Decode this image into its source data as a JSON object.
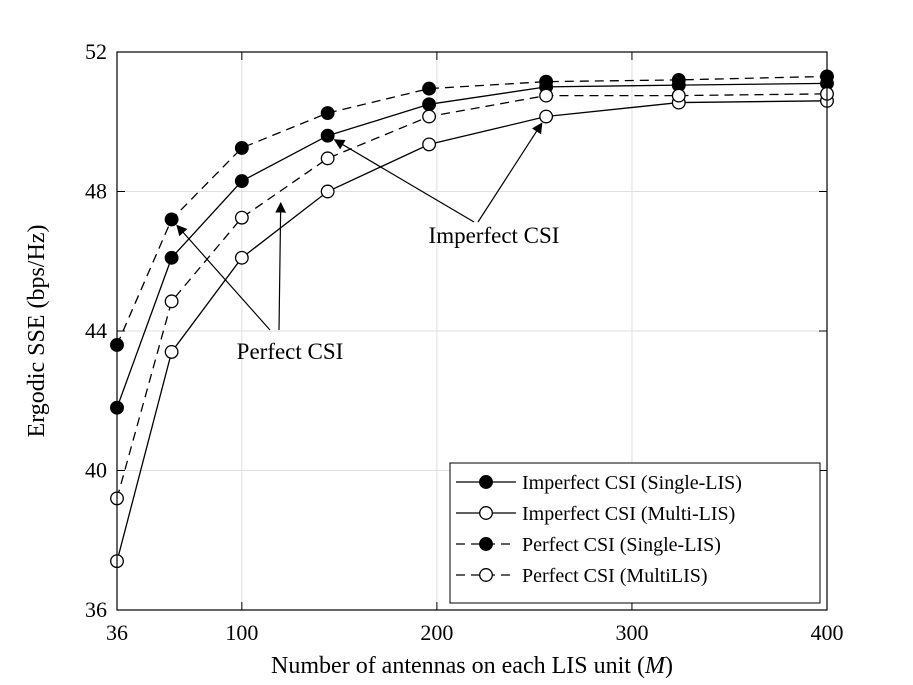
{
  "chart_data": {
    "type": "line",
    "title": "",
    "xlabel": "Number of antennas on each LIS unit",
    "xlabel_var": "M",
    "ylabel": "Ergodic SSE (bps/Hz)",
    "xlim": [
      36,
      400
    ],
    "ylim": [
      36,
      52
    ],
    "xticks": [
      36,
      100,
      200,
      300,
      400
    ],
    "yticks": [
      36,
      40,
      44,
      48,
      52
    ],
    "grid": true,
    "legend_position": "bottom-right",
    "x": [
      36,
      64,
      100,
      144,
      196,
      256,
      324,
      400
    ],
    "series": [
      {
        "name": "Imperfect CSI (Single-LIS)",
        "line": "solid",
        "marker": "filled-circle",
        "values": [
          41.8,
          46.1,
          48.3,
          49.6,
          50.5,
          51.0,
          51.05,
          51.1
        ]
      },
      {
        "name": "Imperfect CSI (Multi-LIS)",
        "line": "solid",
        "marker": "open-circle",
        "values": [
          37.4,
          43.4,
          46.1,
          48.0,
          49.35,
          50.15,
          50.55,
          50.6
        ]
      },
      {
        "name": "Perfect CSI (Single-LIS)",
        "line": "dashed",
        "marker": "filled-circle",
        "values": [
          43.6,
          47.2,
          49.25,
          50.25,
          50.95,
          51.15,
          51.2,
          51.3
        ]
      },
      {
        "name": "Perfect CSI (MultiLIS)",
        "line": "dashed",
        "marker": "open-circle",
        "values": [
          39.2,
          44.85,
          47.25,
          48.95,
          50.15,
          50.75,
          50.75,
          50.8
        ]
      }
    ],
    "annotations": [
      {
        "text": "Imperfect CSI",
        "points_to": [
          [
            144,
            49.6
          ],
          [
            256,
            50.15
          ]
        ]
      },
      {
        "text": "Perfect CSI",
        "points_to": [
          [
            64,
            47.2
          ],
          [
            120,
            47.9
          ]
        ]
      }
    ]
  }
}
